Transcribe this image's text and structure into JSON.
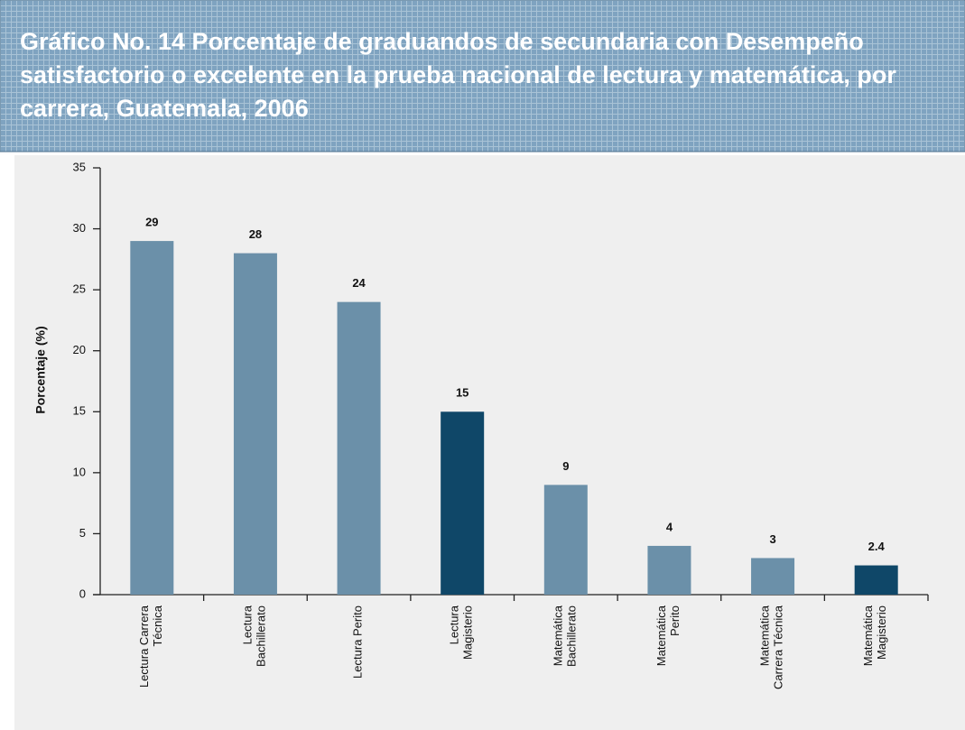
{
  "chart_data": {
    "type": "bar",
    "title": "Gráfico No. 14 Porcentaje de graduandos de secundaria con Desempeño satisfactorio o excelente en la prueba nacional de lectura y matemática, por carrera, Guatemala, 2006",
    "y_label": "Porcentaje (%)",
    "categories": [
      "Lectura Carrera\nTécnica",
      "Lectura\nBachillerato",
      "Lectura Perito",
      "Lectura\nMagisterio",
      "Matemática\nBachillerato",
      "Matemática\nPerito",
      "Matemática\nCarrera Técnica",
      "Matemática\nMagisterio"
    ],
    "values": [
      29,
      28,
      24,
      15,
      9,
      4,
      3,
      2.4
    ],
    "colors": [
      "#6b90a9",
      "#6b90a9",
      "#6b90a9",
      "#0f4768",
      "#6b90a9",
      "#6b90a9",
      "#6b90a9",
      "#0f4768"
    ],
    "ylim": [
      0,
      35
    ],
    "yticks": [
      0,
      5,
      10,
      15,
      20,
      25,
      30,
      35
    ],
    "grid": false
  }
}
